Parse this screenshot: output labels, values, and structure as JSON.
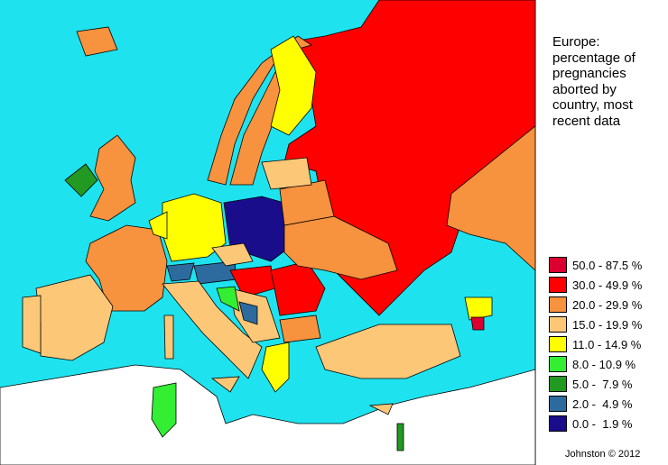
{
  "map": {
    "title_lines": [
      "Europe:",
      "percentage of",
      "pregnancies",
      "aborted by",
      "country, most",
      "recent data"
    ],
    "legend": [
      {
        "label": "50.0 - 87.5 %",
        "color": "#dc0030"
      },
      {
        "label": "30.0 - 49.9 %",
        "color": "#ff0000"
      },
      {
        "label": "20.0 - 29.9 %",
        "color": "#f7923e"
      },
      {
        "label": "15.0 - 19.9 %",
        "color": "#fcc878"
      },
      {
        "label": "11.0 - 14.9 %",
        "color": "#ffff00"
      },
      {
        "label": "8.0 - 10.9 %",
        "color": "#33ee33"
      },
      {
        "label": "5.0 -  7.9 %",
        "color": "#229922"
      },
      {
        "label": "2.0 -  4.9 %",
        "color": "#2d6a9e"
      },
      {
        "label": "0.0 -  1.9 %",
        "color": "#1a0d8c"
      }
    ],
    "credit": "Johnston © 2012"
  }
}
